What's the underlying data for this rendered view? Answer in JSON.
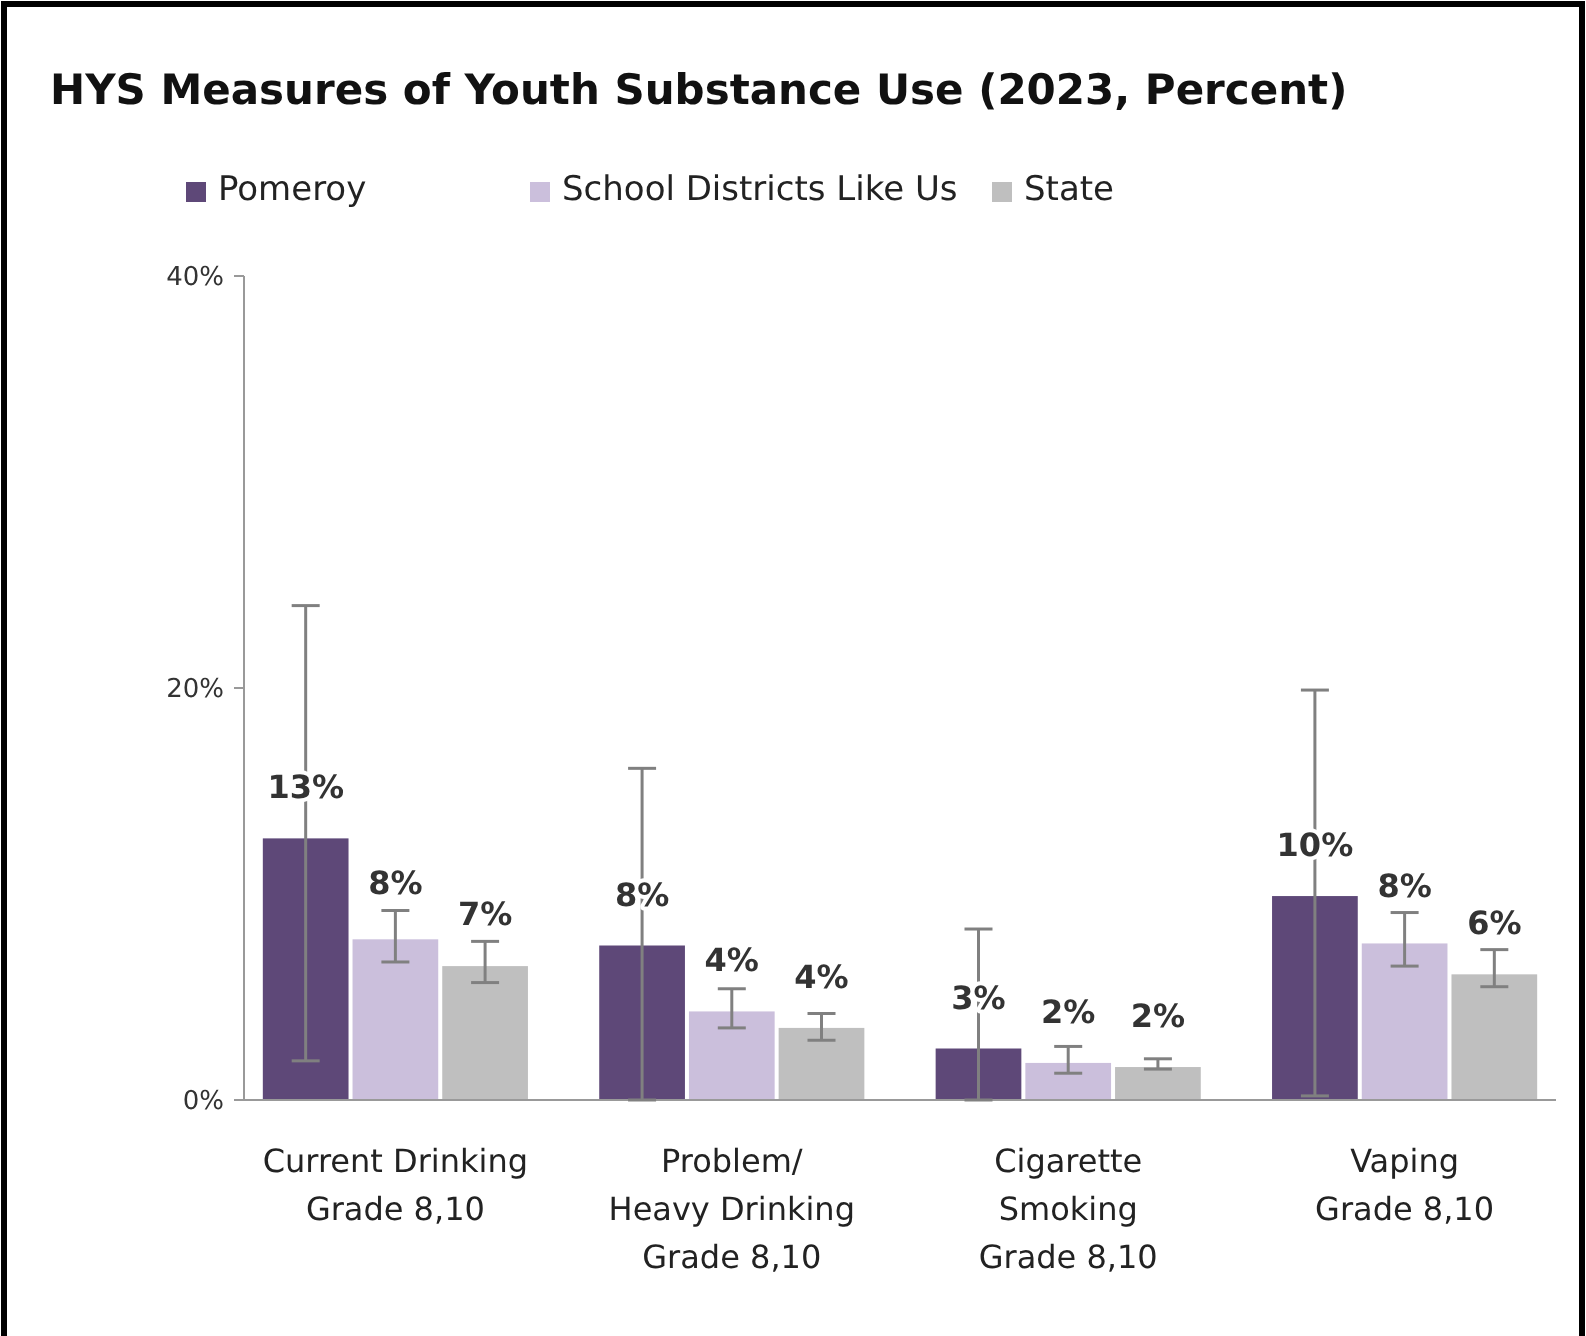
{
  "chart_data": {
    "type": "bar",
    "title": "HYS Measures of Youth Substance Use (2023, Percent)",
    "categories": [
      "Current Drinking\nGrade 8,10",
      "Problem/\nHeavy Drinking\nGrade 8,10",
      "Cigarette\nSmoking\nGrade 8,10",
      "Vaping\nGrade 8,10"
    ],
    "series": [
      {
        "name": "Pomeroy",
        "color": "#5e4878",
        "values": [
          12.7,
          7.5,
          2.5,
          9.9
        ],
        "errors": [
          [
            1.9,
            24.0
          ],
          [
            0,
            16.1
          ],
          [
            0,
            8.3
          ],
          [
            0.2,
            19.9
          ]
        ],
        "value_labels": [
          "13%",
          "8%",
          "3%",
          "10%"
        ]
      },
      {
        "name": "School Districts Like Us",
        "color": "#cbbfdc",
        "values": [
          7.8,
          4.3,
          1.8,
          7.6
        ],
        "errors": [
          [
            6.7,
            9.2
          ],
          [
            3.5,
            5.4
          ],
          [
            1.3,
            2.6
          ],
          [
            6.5,
            9.1
          ]
        ],
        "value_labels": [
          "8%",
          "4%",
          "2%",
          "8%"
        ]
      },
      {
        "name": "State",
        "color": "#bfbfbf",
        "values": [
          6.5,
          3.5,
          1.6,
          6.1
        ],
        "errors": [
          [
            5.7,
            7.7
          ],
          [
            2.9,
            4.2
          ],
          [
            1.5,
            2.0
          ],
          [
            5.5,
            7.3
          ]
        ],
        "value_labels": [
          "7%",
          "4%",
          "2%",
          "6%"
        ]
      }
    ],
    "ylim": [
      0,
      40
    ],
    "yticks": [
      {
        "value": 0,
        "label": "0%"
      },
      {
        "value": 20,
        "label": "20%"
      },
      {
        "value": 40,
        "label": "40%"
      }
    ],
    "grid": false,
    "legend": "top left"
  }
}
